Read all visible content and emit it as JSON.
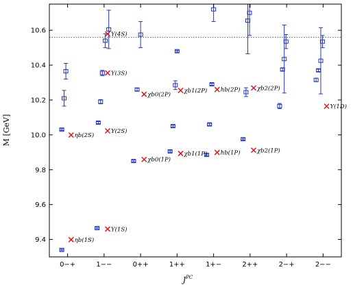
{
  "chart_data": {
    "type": "scatter",
    "xlabel": "J^PC",
    "ylabel": "M [GeV]",
    "ylim": [
      9.3,
      10.75
    ],
    "yticks": [
      9.4,
      9.6,
      9.8,
      10.0,
      10.2,
      10.4,
      10.6
    ],
    "ytick_labels": [
      "9.4",
      "9.6",
      "9.8",
      "10.0",
      "10.2",
      "10.4",
      "10.6"
    ],
    "categories": [
      "0−+",
      "1−−",
      "0++",
      "1++",
      "1+−",
      "2++",
      "2−+",
      "2−−"
    ],
    "threshold_line": {
      "y": 10.56,
      "style": "dotted"
    },
    "lattice_points": [
      {
        "cat": 0,
        "offset": -0.1,
        "y": 9.34,
        "err": 0.004
      },
      {
        "cat": 0,
        "offset": -0.1,
        "y": 10.03,
        "err": 0.005
      },
      {
        "cat": 0,
        "offset": -0.06,
        "y": 10.21,
        "err": 0.045
      },
      {
        "cat": 0,
        "offset": -0.03,
        "y": 10.365,
        "err": 0.045
      },
      {
        "cat": 1,
        "offset": -0.12,
        "y": 9.465,
        "err": 0.004
      },
      {
        "cat": 1,
        "offset": -0.1,
        "y": 10.07,
        "err": 0.006
      },
      {
        "cat": 1,
        "offset": -0.06,
        "y": 10.19,
        "err": 0.012
      },
      {
        "cat": 1,
        "offset": -0.03,
        "y": 10.355,
        "err": 0.015
      },
      {
        "cat": 1,
        "offset": 0.02,
        "y": 10.54,
        "err": 0.04
      },
      {
        "cat": 1,
        "offset": 0.08,
        "y": 10.605,
        "err": 0.11
      },
      {
        "cat": 2,
        "offset": -0.12,
        "y": 9.85,
        "err": 0.005
      },
      {
        "cat": 2,
        "offset": -0.06,
        "y": 10.26,
        "err": 0.008
      },
      {
        "cat": 2,
        "offset": 0.0,
        "y": 10.575,
        "err": 0.075
      },
      {
        "cat": 3,
        "offset": -0.12,
        "y": 9.905,
        "err": 0.005
      },
      {
        "cat": 3,
        "offset": -0.07,
        "y": 10.05,
        "err": 0.006
      },
      {
        "cat": 3,
        "offset": -0.03,
        "y": 10.285,
        "err": 0.025
      },
      {
        "cat": 3,
        "offset": 0.0,
        "y": 10.48,
        "err": 0.005
      },
      {
        "cat": 4,
        "offset": -0.12,
        "y": 9.885,
        "err": 0.005
      },
      {
        "cat": 4,
        "offset": -0.07,
        "y": 10.06,
        "err": 0.006
      },
      {
        "cat": 4,
        "offset": -0.03,
        "y": 10.29,
        "err": 0.006
      },
      {
        "cat": 4,
        "offset": 0.0,
        "y": 10.72,
        "err": 0.07
      },
      {
        "cat": 5,
        "offset": -0.12,
        "y": 9.975,
        "err": 0.005
      },
      {
        "cat": 5,
        "offset": -0.07,
        "y": 10.245,
        "err": 0.025
      },
      {
        "cat": 5,
        "offset": -0.04,
        "y": 10.655,
        "err": 0.19
      },
      {
        "cat": 5,
        "offset": -0.01,
        "y": 10.7,
        "err": 0.13
      },
      {
        "cat": 6,
        "offset": -0.12,
        "y": 10.165,
        "err": 0.015
      },
      {
        "cat": 6,
        "offset": -0.07,
        "y": 10.375,
        "err": 0.008
      },
      {
        "cat": 6,
        "offset": -0.04,
        "y": 10.435,
        "err": 0.195
      },
      {
        "cat": 6,
        "offset": -0.01,
        "y": 10.535,
        "err": 0.04
      },
      {
        "cat": 7,
        "offset": -0.12,
        "y": 10.315,
        "err": 0.01
      },
      {
        "cat": 7,
        "offset": -0.08,
        "y": 10.37,
        "err": 0.007
      },
      {
        "cat": 7,
        "offset": -0.04,
        "y": 10.425,
        "err": 0.19
      },
      {
        "cat": 7,
        "offset": -0.01,
        "y": 10.535,
        "err": 0.035
      }
    ],
    "experimental_points": [
      {
        "cat": 0,
        "y": 9.399,
        "label": "ηb(1S)"
      },
      {
        "cat": 0,
        "y": 9.999,
        "label": "ηb(2S)"
      },
      {
        "cat": 1,
        "y": 9.46,
        "label": "Υ(1S)"
      },
      {
        "cat": 1,
        "y": 10.023,
        "label": "Υ(2S)"
      },
      {
        "cat": 1,
        "y": 10.355,
        "label": "Υ(3S)"
      },
      {
        "cat": 1,
        "y": 10.579,
        "label": "Υ(4S)"
      },
      {
        "cat": 2,
        "y": 9.859,
        "label": "χb0(1P)"
      },
      {
        "cat": 2,
        "y": 10.233,
        "label": "χb0(2P)"
      },
      {
        "cat": 3,
        "y": 9.893,
        "label": "χb1(1P)"
      },
      {
        "cat": 3,
        "y": 10.255,
        "label": "χb1(2P)"
      },
      {
        "cat": 4,
        "y": 9.899,
        "label": "hb(1P)"
      },
      {
        "cat": 4,
        "y": 10.26,
        "label": "hb(2P)"
      },
      {
        "cat": 5,
        "y": 9.912,
        "label": "χb2(1P)"
      },
      {
        "cat": 5,
        "y": 10.269,
        "label": "χb2(2P)"
      },
      {
        "cat": 7,
        "y": 10.164,
        "label": "Υ(1D)"
      }
    ],
    "colors": {
      "lattice": "#2233cc",
      "experiment": "#e8141c",
      "threshold": "#555555"
    }
  }
}
